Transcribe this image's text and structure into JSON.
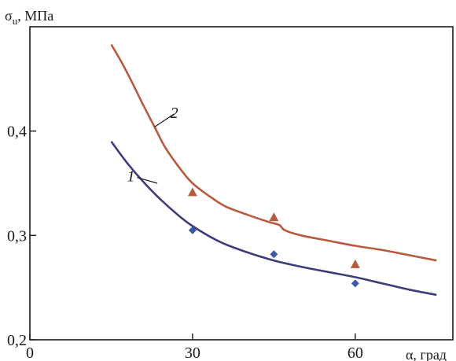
{
  "chart_data": {
    "type": "line",
    "title": "",
    "ylabel": "σ",
    "ylabel_sub": "u",
    "ylabel_unit": ", МПа",
    "xlabel": "α, град",
    "xlim": [
      0,
      78
    ],
    "ylim": [
      0.2,
      0.5
    ],
    "x_ticks": [
      0,
      30,
      60
    ],
    "x_tick_labels": [
      "0",
      "30",
      "60"
    ],
    "y_ticks": [
      0.2,
      0.3,
      0.4
    ],
    "y_tick_labels": [
      "0,2",
      "0,3",
      "0,4"
    ],
    "grid": false,
    "legend": "none",
    "series": [
      {
        "name": "1",
        "color": "#3d3d7a",
        "marker": "diamond",
        "marker_color": "#3b5ba5",
        "curve": {
          "x": [
            15,
            18,
            21,
            24,
            27,
            30,
            35,
            40,
            45,
            50,
            55,
            60,
            65,
            70,
            75
          ],
          "y": [
            0.39,
            0.369,
            0.351,
            0.335,
            0.321,
            0.309,
            0.294,
            0.284,
            0.276,
            0.27,
            0.265,
            0.26,
            0.254,
            0.248,
            0.243
          ]
        },
        "points": {
          "x": [
            30,
            45,
            60
          ],
          "y": [
            0.305,
            0.282,
            0.254
          ]
        }
      },
      {
        "name": "2",
        "color": "#b85a3e",
        "marker": "triangle",
        "marker_color": "#b85a3e",
        "curve": {
          "x": [
            15,
            17,
            19,
            21,
            23,
            25,
            28,
            30,
            33,
            36,
            40,
            44,
            46,
            47,
            50,
            55,
            60,
            65,
            70,
            75
          ],
          "y": [
            0.483,
            0.465,
            0.445,
            0.424,
            0.404,
            0.384,
            0.362,
            0.35,
            0.338,
            0.328,
            0.32,
            0.313,
            0.31,
            0.305,
            0.3,
            0.295,
            0.29,
            0.286,
            0.281,
            0.276
          ]
        },
        "points": {
          "x": [
            30,
            45,
            60
          ],
          "y": [
            0.341,
            0.317,
            0.272
          ]
        }
      }
    ],
    "annotations": [
      {
        "text": "1",
        "x": 19.5,
        "y": 0.357,
        "target_x": 23.5,
        "target_y": 0.35
      },
      {
        "text": "2",
        "x": 27.5,
        "y": 0.418,
        "target_x": 23.0,
        "target_y": 0.404
      }
    ]
  }
}
